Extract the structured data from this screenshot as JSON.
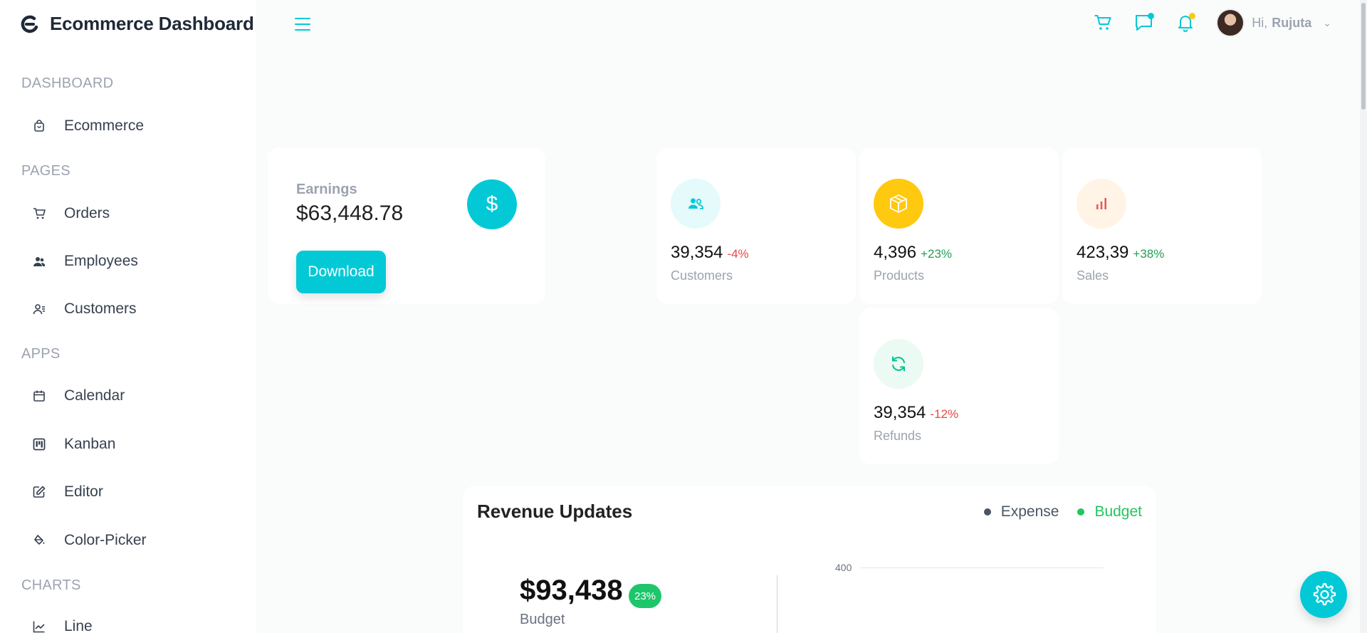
{
  "app": {
    "title": "Ecommerce Dashboard"
  },
  "sidebar": {
    "sections": [
      {
        "title": "DASHBOARD",
        "items": [
          {
            "label": "Ecommerce",
            "icon": "shopping-bag-icon"
          }
        ]
      },
      {
        "title": "PAGES",
        "items": [
          {
            "label": "Orders",
            "icon": "cart-icon"
          },
          {
            "label": "Employees",
            "icon": "employees-icon"
          },
          {
            "label": "Customers",
            "icon": "customers-icon"
          }
        ]
      },
      {
        "title": "APPS",
        "items": [
          {
            "label": "Calendar",
            "icon": "calendar-icon"
          },
          {
            "label": "Kanban",
            "icon": "kanban-icon"
          },
          {
            "label": "Editor",
            "icon": "editor-icon"
          },
          {
            "label": "Color-Picker",
            "icon": "color-picker-icon"
          }
        ]
      },
      {
        "title": "CHARTS",
        "items": [
          {
            "label": "Line",
            "icon": "line-chart-icon"
          }
        ]
      }
    ]
  },
  "header": {
    "greeting": "Hi,",
    "user_name": "Rujuta",
    "accent_color": "#03c9d7",
    "chat_dot_color": "#03c9d7",
    "notification_dot_color": "#fec90f"
  },
  "earnings": {
    "label": "Earnings",
    "value": "$63,448.78",
    "download_label": "Download",
    "currency_symbol": "$"
  },
  "stats": {
    "customers": {
      "amount": "39,354",
      "percent": "-4%",
      "name": "Customers",
      "percent_color": "#ee4444",
      "icon_bg": "#e5fafb",
      "icon_color": "#03c9d7"
    },
    "products": {
      "amount": "4,396",
      "percent": "+23%",
      "name": "Products",
      "percent_color": "#1f9d55",
      "icon_bg": "#fec90f",
      "icon_color": "#ffffff"
    },
    "sales": {
      "amount": "423,39",
      "percent": "+38%",
      "name": "Sales",
      "percent_color": "#1f9d55",
      "icon_bg": "#fff4e5",
      "icon_color": "#e45a5a"
    },
    "refunds": {
      "amount": "39,354",
      "percent": "-12%",
      "name": "Refunds",
      "percent_color": "#ee4444",
      "icon_bg": "#ebfaf2",
      "icon_color": "#00c292"
    }
  },
  "revenue": {
    "title": "Revenue Updates",
    "legend": [
      {
        "label": "Expense",
        "color": "#4b5563"
      },
      {
        "label": "Budget",
        "color": "#22c55e"
      }
    ],
    "budget_value": "$93,438",
    "budget_badge": "23%",
    "budget_label": "Budget",
    "axis_tick": "400"
  }
}
